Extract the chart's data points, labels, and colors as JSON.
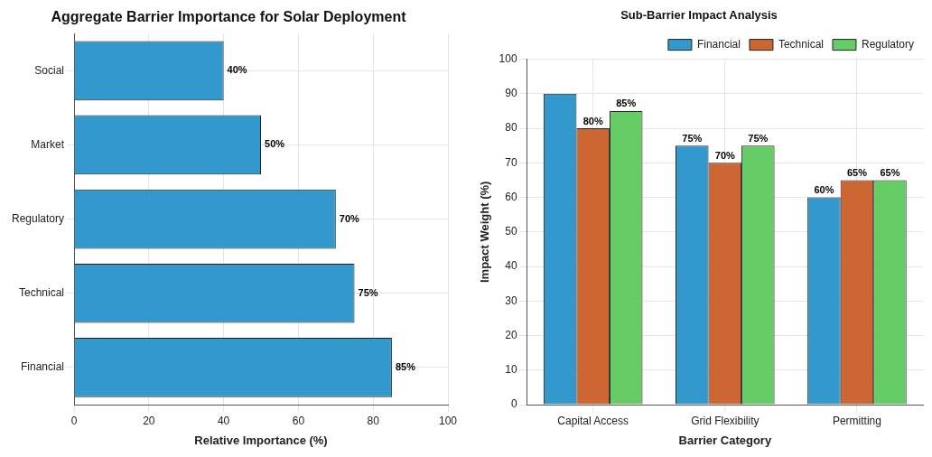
{
  "chart_data": [
    {
      "type": "bar",
      "title": "Aggregate Barrier Importance for Solar Deployment",
      "xlabel": "Relative Importance (%)",
      "orientation": "horizontal",
      "categories": [
        "Social",
        "Market",
        "Regulatory",
        "Technical",
        "Financial"
      ],
      "values": [
        40,
        50,
        70,
        75,
        85
      ],
      "color": "#3399cc",
      "value_labels": [
        "40%",
        "50%",
        "70%",
        "75%",
        "85%"
      ],
      "xlim": [
        0,
        100
      ],
      "xticks": [
        0,
        20,
        40,
        60,
        80,
        100
      ],
      "grid": true
    },
    {
      "type": "bar",
      "title": "Sub-Barrier Impact Analysis",
      "xlabel": "Barrier Category",
      "ylabel": "Impact Weight (%)",
      "categories": [
        "Capital Access",
        "Grid Flexibility",
        "Permitting"
      ],
      "series": [
        {
          "name": "Financial",
          "color": "#3399cc",
          "values": [
            90,
            75,
            60
          ],
          "value_labels": [
            null,
            "75%",
            "60%"
          ]
        },
        {
          "name": "Technical",
          "color": "#cc6633",
          "values": [
            80,
            70,
            65
          ],
          "value_labels": [
            "80%",
            "70%",
            "65%"
          ]
        },
        {
          "name": "Regulatory",
          "color": "#66cc66",
          "values": [
            85,
            75,
            65
          ],
          "value_labels": [
            "85%",
            "75%",
            "65%"
          ]
        }
      ],
      "ylim": [
        0,
        100
      ],
      "yticks": [
        0,
        10,
        20,
        30,
        40,
        50,
        60,
        70,
        80,
        90,
        100
      ],
      "grid": true,
      "legend": "top right"
    }
  ]
}
